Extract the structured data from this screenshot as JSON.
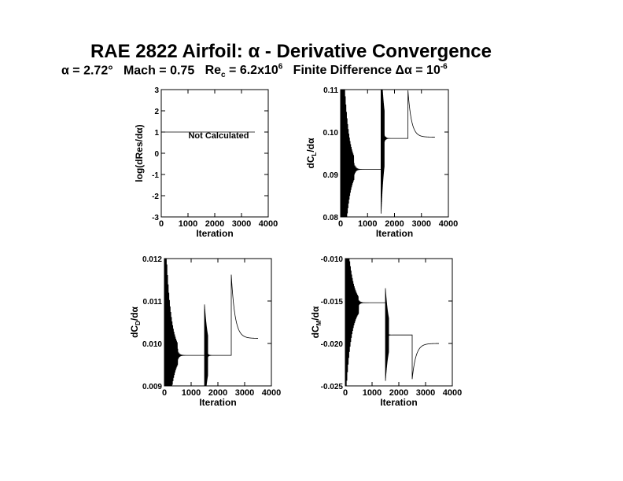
{
  "title": "RAE 2822 Airfoil:  α - Derivative Convergence",
  "subtitle": {
    "alpha": "α = 2.72°",
    "mach": "Mach = 0.75",
    "re_label": "Re",
    "re_sub": "c",
    "re_value": " = 6.2x10",
    "re_exp": "6",
    "fd": "Finite Difference Δα = 10",
    "fd_exp": "-6"
  },
  "chart_data": [
    {
      "type": "line",
      "id": "residual",
      "xlabel": "Iteration",
      "ylabel": "log(dRes/dα)",
      "xlim": [
        0,
        4000
      ],
      "ylim": [
        -3,
        3
      ],
      "xticks": [
        0,
        1000,
        2000,
        3000,
        4000
      ],
      "xtick_labels": [
        "0",
        "1000",
        "2000",
        "3000",
        "4000"
      ],
      "yticks": [
        -3,
        -2,
        -1,
        0,
        1,
        2,
        3
      ],
      "ytick_labels": [
        "-3",
        "-2",
        "-1",
        "0",
        "1",
        "2",
        "3"
      ],
      "annotation": "Not Calculated",
      "x": [
        0,
        3500
      ],
      "y": [
        1,
        1
      ]
    },
    {
      "type": "line",
      "id": "dcl",
      "xlabel": "Iteration",
      "ylabel": "dC_L/dα",
      "ylabel_main": "dC",
      "ylabel_sub": "L",
      "ylabel_tail": "/dα",
      "xlim": [
        0,
        4000
      ],
      "ylim": [
        0.08,
        0.11
      ],
      "xticks": [
        0,
        1000,
        2000,
        3000,
        4000
      ],
      "xtick_labels": [
        "0",
        "1000",
        "2000",
        "3000",
        "4000"
      ],
      "yticks": [
        0.08,
        0.09,
        0.1,
        0.11
      ],
      "ytick_labels": [
        "0.08",
        "0.09",
        "0.10",
        "0.11"
      ],
      "segments": [
        {
          "start": 0,
          "end": 500,
          "center": 0.0915,
          "amp": 0.045,
          "decay": 180,
          "period": 22
        },
        {
          "start": 500,
          "end": 1500,
          "center": 0.0912,
          "amp": 0.0015,
          "decay": 60,
          "period": 30
        },
        {
          "start": 1500,
          "end": 1620,
          "center": 0.0985,
          "amp": 0.018,
          "decay": 120,
          "period": 4
        },
        {
          "start": 1620,
          "end": 2500,
          "center": 0.0985,
          "amp": 0.001,
          "decay": 40,
          "period": 20
        },
        {
          "start": 2500,
          "end": 3500,
          "center": 0.0988,
          "amp": 0.011,
          "decay": 130,
          "period": 2000
        }
      ]
    },
    {
      "type": "line",
      "id": "dcd",
      "xlabel": "Iteration",
      "ylabel": "dC_D/dα",
      "ylabel_main": "dC",
      "ylabel_sub": "D",
      "ylabel_tail": "/dα",
      "xlim": [
        0,
        4000
      ],
      "ylim": [
        0.009,
        0.012
      ],
      "xticks": [
        0,
        1000,
        2000,
        3000,
        4000
      ],
      "xtick_labels": [
        "0",
        "1000",
        "2000",
        "3000",
        "4000"
      ],
      "yticks": [
        0.009,
        0.01,
        0.011,
        0.012
      ],
      "ytick_labels": [
        "0.009",
        "0.010",
        "0.011",
        "0.012"
      ],
      "segments": [
        {
          "start": 0,
          "end": 500,
          "center": 0.00975,
          "amp": 0.0035,
          "decay": 190,
          "period": 24
        },
        {
          "start": 500,
          "end": 1500,
          "center": 0.00972,
          "amp": 0.0001,
          "decay": 60,
          "period": 30
        },
        {
          "start": 1500,
          "end": 1620,
          "center": 0.00972,
          "amp": 0.0012,
          "decay": 130,
          "period": 4
        },
        {
          "start": 1620,
          "end": 2500,
          "center": 0.00972,
          "amp": 3e-05,
          "decay": 40,
          "period": 20
        },
        {
          "start": 2500,
          "end": 3500,
          "center": 0.01012,
          "amp": 0.0015,
          "decay": 140,
          "period": 2000
        }
      ]
    },
    {
      "type": "line",
      "id": "dcm",
      "xlabel": "Iteration",
      "ylabel": "dC_M/dα",
      "ylabel_main": "dC",
      "ylabel_sub": "M",
      "ylabel_tail": "/dα",
      "xlim": [
        0,
        4000
      ],
      "ylim": [
        -0.025,
        -0.01
      ],
      "xticks": [
        0,
        1000,
        2000,
        3000,
        4000
      ],
      "xtick_labels": [
        "0",
        "1000",
        "2000",
        "3000",
        "4000"
      ],
      "yticks": [
        -0.025,
        -0.02,
        -0.015,
        -0.01
      ],
      "ytick_labels": [
        "-0.025",
        "-0.020",
        "-0.015",
        "-0.010"
      ],
      "segments": [
        {
          "start": 0,
          "end": 500,
          "center": -0.0155,
          "amp": 0.012,
          "decay": 200,
          "period": 24
        },
        {
          "start": 500,
          "end": 1500,
          "center": -0.0152,
          "amp": 0.0003,
          "decay": 60,
          "period": 30
        },
        {
          "start": 1500,
          "end": 1620,
          "center": -0.019,
          "amp": 0.0055,
          "decay": 120,
          "period": 4
        },
        {
          "start": 1620,
          "end": 2500,
          "center": -0.019,
          "amp": 5e-05,
          "decay": 40,
          "period": 20
        },
        {
          "start": 2500,
          "end": 3500,
          "center": -0.02,
          "amp": -0.0042,
          "decay": 140,
          "period": 2000
        }
      ]
    }
  ]
}
